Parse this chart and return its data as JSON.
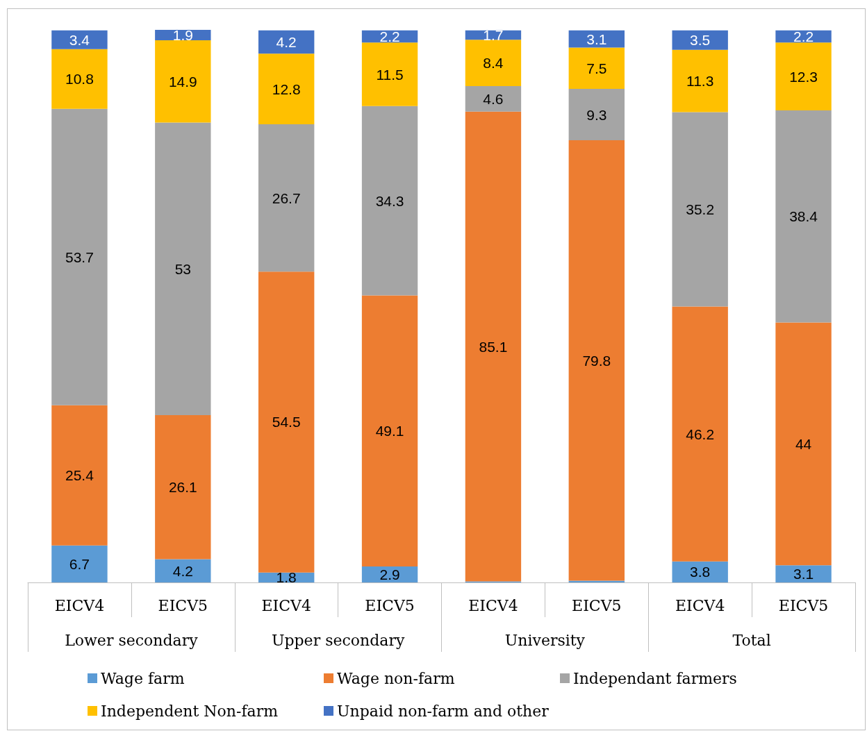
{
  "chart_data": {
    "type": "bar",
    "stacked": true,
    "legend": "bottom",
    "tick_labels": "x",
    "ylim": [
      0,
      100.1
    ],
    "categories": [
      "EICV4",
      "EICV5",
      "EICV4",
      "EICV5",
      "EICV4",
      "EICV5",
      "EICV4",
      "EICV5"
    ],
    "annotations": [
      "Lower secondary",
      "Upper secondary",
      "University",
      "Total"
    ],
    "series": [
      {
        "name": "Wage farm",
        "color": "#5b9bd5",
        "values": [
          6.7,
          4.2,
          1.8,
          2.9,
          0.2,
          0.3,
          3.8,
          3.1
        ],
        "value_labels": [
          "6.7",
          "4.2",
          "1.8",
          "2.9",
          null,
          null,
          "3.8",
          "3.1"
        ]
      },
      {
        "name": "Wage non-farm",
        "color": "#ed7d31",
        "values": [
          25.4,
          26.1,
          54.5,
          49.1,
          85.1,
          79.8,
          46.2,
          44
        ],
        "value_labels": [
          "25.4",
          "26.1",
          "54.5",
          "49.1",
          "85.1",
          "79.8",
          "46.2",
          "44"
        ]
      },
      {
        "name": "Independant farmers",
        "color": "#a5a5a5",
        "values": [
          53.7,
          53,
          26.7,
          34.3,
          4.6,
          9.3,
          35.2,
          38.4
        ],
        "value_labels": [
          "53.7",
          "53",
          "26.7",
          "34.3",
          "4.6",
          "9.3",
          "35.2",
          "38.4"
        ]
      },
      {
        "name": "Independent Non-farm",
        "color": "#ffc000",
        "values": [
          10.8,
          14.9,
          12.8,
          11.5,
          8.4,
          7.5,
          11.3,
          12.3
        ],
        "value_labels": [
          "10.8",
          "14.9",
          "12.8",
          "11.5",
          "8.4",
          "7.5",
          "11.3",
          "12.3"
        ]
      },
      {
        "name": "Unpaid non-farm and other",
        "color": "#4472c4",
        "values": [
          3.4,
          1.9,
          4.2,
          2.2,
          1.7,
          3.1,
          3.5,
          2.2
        ],
        "value_labels": [
          "3.4",
          "1.9",
          "4.2",
          "2.2",
          "1.7",
          "3.1",
          "3.5",
          "2.2"
        ]
      }
    ]
  }
}
